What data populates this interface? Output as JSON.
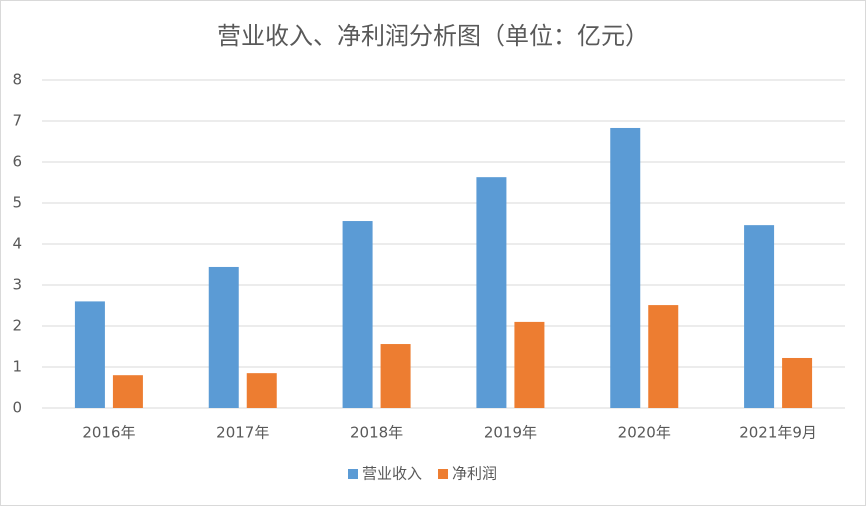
{
  "chart_data": {
    "type": "bar",
    "title": "营业收入、净利润分析图（单位：亿元）",
    "categories": [
      "2016年",
      "2017年",
      "2018年",
      "2019年",
      "2020年",
      "2021年9月"
    ],
    "series": [
      {
        "name": "营业收入",
        "color": "#5b9bd5",
        "values": [
          2.6,
          3.44,
          4.56,
          5.63,
          6.83,
          4.46
        ]
      },
      {
        "name": "净利润",
        "color": "#ed7d31",
        "values": [
          0.8,
          0.85,
          1.56,
          2.1,
          2.51,
          1.22
        ]
      }
    ],
    "ylim": [
      0,
      8
    ],
    "yticks": [
      0,
      1,
      2,
      3,
      4,
      5,
      6,
      7,
      8
    ],
    "grid": true,
    "legend": "bottom"
  }
}
